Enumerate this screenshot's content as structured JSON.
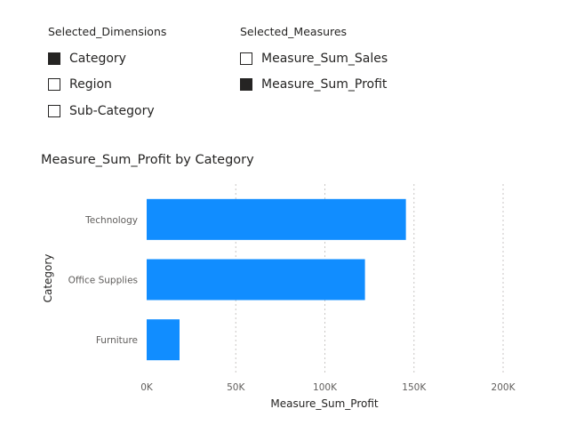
{
  "slicers": {
    "dimensions": {
      "title": "Selected_Dimensions",
      "items": [
        {
          "label": "Category",
          "checked": true
        },
        {
          "label": "Region",
          "checked": false
        },
        {
          "label": "Sub-Category",
          "checked": false
        }
      ]
    },
    "measures": {
      "title": "Selected_Measures",
      "items": [
        {
          "label": "Measure_Sum_Sales",
          "checked": false
        },
        {
          "label": "Measure_Sum_Profit",
          "checked": true
        }
      ]
    }
  },
  "colors": {
    "bar": "#118DFF",
    "text": "#252423",
    "tick": "#605E5C",
    "grid": "#C8C6C4"
  },
  "chart_data": {
    "type": "bar",
    "orientation": "horizontal",
    "title": "Measure_Sum_Profit by Category",
    "xlabel": "Measure_Sum_Profit",
    "ylabel": "Category",
    "categories": [
      "Technology",
      "Office Supplies",
      "Furniture"
    ],
    "values": [
      145455,
      122491,
      18451
    ],
    "xlim": [
      0,
      200000
    ],
    "xticks": [
      0,
      50000,
      100000,
      150000,
      200000
    ],
    "xtick_labels": [
      "0K",
      "50K",
      "100K",
      "150K",
      "200K"
    ],
    "grid": "vertical-dotted",
    "legend": "none"
  }
}
